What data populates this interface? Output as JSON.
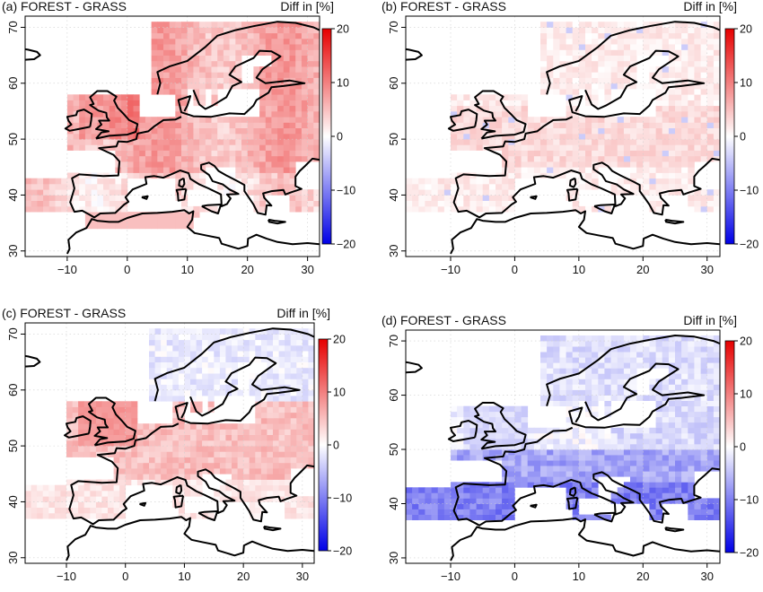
{
  "figure": {
    "colorbar": {
      "min": -20,
      "max": 20,
      "ticks": [
        "20",
        "10",
        "0",
        "-10",
        "-20"
      ],
      "colors": {
        "negative": "#0000e6",
        "neutral": "#ffffff",
        "positive": "#e60000"
      }
    },
    "x_ticks": [
      "-10",
      "0",
      "10",
      "20",
      "30"
    ],
    "y_ticks": [
      "70",
      "60",
      "50",
      "40",
      "30"
    ],
    "lon_range": [
      -17,
      32
    ],
    "lat_range": [
      29,
      72
    ],
    "panels": [
      {
        "title": "(a) FOREST - GRASS",
        "units": "Diff in [%]",
        "pattern": "warm_all"
      },
      {
        "title": "(b) FOREST - GRASS",
        "units": "Diff in [%]",
        "pattern": "faint"
      },
      {
        "title": "(c) FOREST - GRASS",
        "units": "Diff in [%]",
        "pattern": "mixed"
      },
      {
        "title": "(d) FOREST - GRASS",
        "units": "Diff in [%]",
        "pattern": "cool_south"
      }
    ]
  }
}
